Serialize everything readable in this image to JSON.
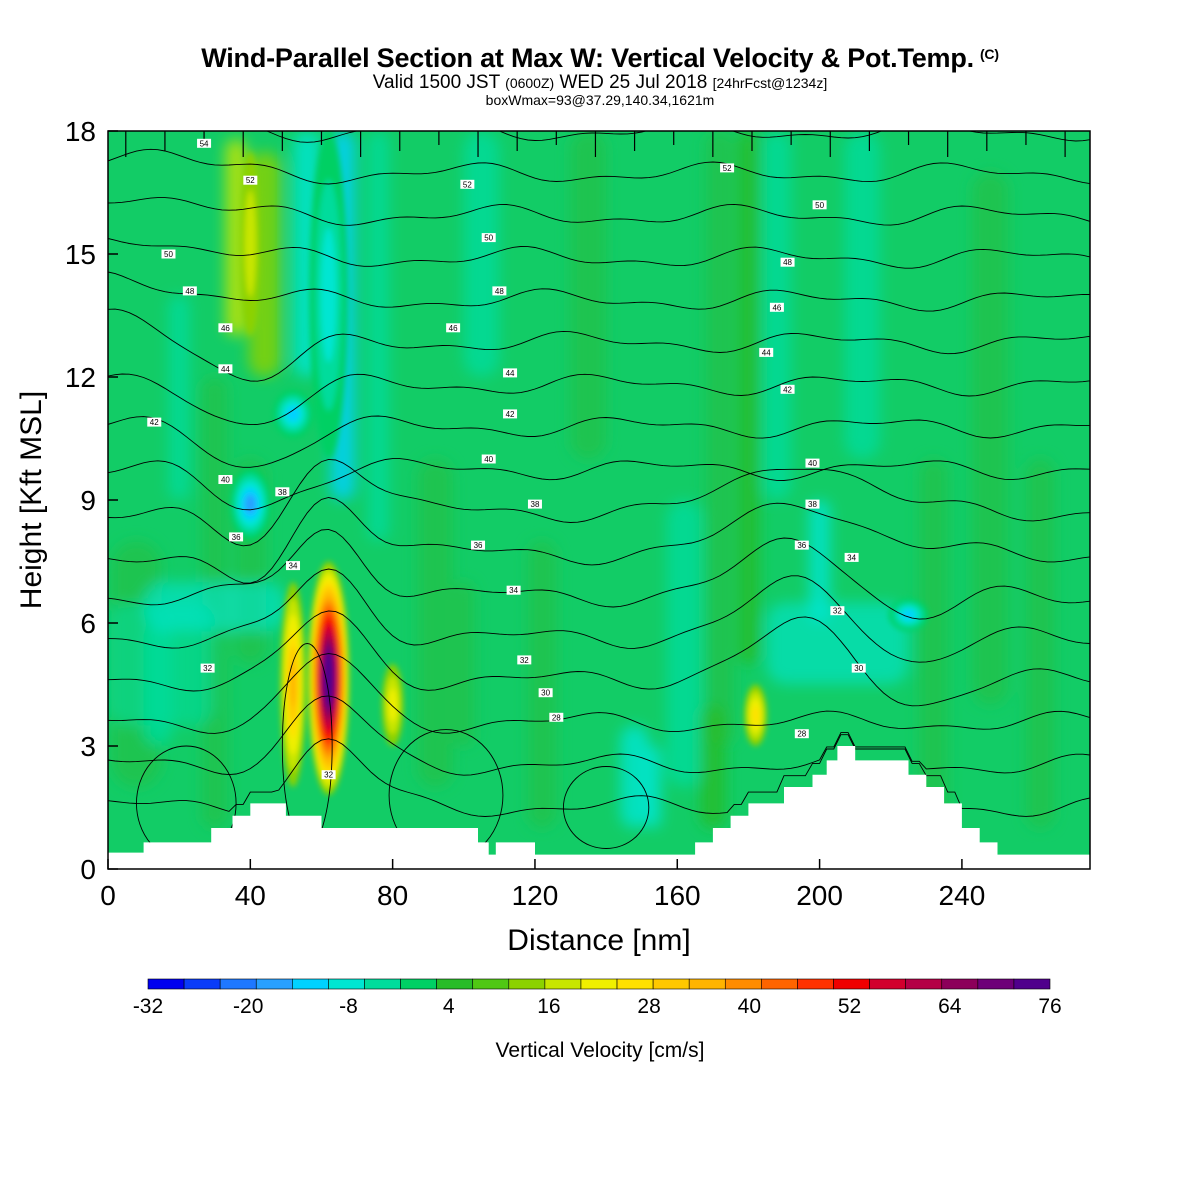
{
  "header": {
    "title": "Wind-Parallel Section at Max W: Vertical Velocity & Pot.Temp.",
    "copyright": "(C)",
    "valid_main": "Valid 1500 JST",
    "valid_utc": "(0600Z)",
    "valid_date": "WED 25 Jul 2018",
    "forecast": "[24hrFcst@1234z]",
    "boxwmax": "boxWmax=93@37.29,140.34,1621m"
  },
  "chart_data": {
    "type": "heatmap",
    "xlabel": "Distance [nm]",
    "ylabel": "Height [Kft MSL]",
    "xlim": [
      0,
      276
    ],
    "ylim": [
      0,
      18
    ],
    "x_ticks": [
      "0",
      "40",
      "80",
      "120",
      "160",
      "200",
      "240"
    ],
    "y_ticks": [
      "0",
      "3",
      "6",
      "9",
      "12",
      "15",
      "18"
    ],
    "colorbar": {
      "label": "Vertical Velocity [cm/s]",
      "ticks": [
        "-32",
        "-20",
        "-8",
        "4",
        "16",
        "28",
        "40",
        "52",
        "64",
        "76"
      ],
      "levels_start": -32,
      "level_step": 4,
      "colors": [
        "#0000f0",
        "#0a3cf8",
        "#1e78ff",
        "#28a0ff",
        "#00d2ff",
        "#00e6d2",
        "#00dc9c",
        "#00d064",
        "#28bc28",
        "#50c814",
        "#8cd200",
        "#c8e600",
        "#f0f000",
        "#ffe000",
        "#ffc800",
        "#ffb400",
        "#ff8c00",
        "#ff6400",
        "#ff3200",
        "#f00000",
        "#d2002d",
        "#b40046",
        "#8c005a",
        "#6e0078",
        "#50008c"
      ]
    },
    "vertical_velocity_features": [
      {
        "kind": "updraft",
        "x": 62,
        "z_range": [
          1.8,
          7.5
        ],
        "peak": 76
      },
      {
        "kind": "updraft",
        "x": 52,
        "z_range": [
          2.0,
          7.0
        ],
        "peak": 28
      },
      {
        "kind": "updraft",
        "x": 80,
        "z_range": [
          3.0,
          5.0
        ],
        "peak": 16
      },
      {
        "kind": "updraft",
        "x": 40,
        "z_range": [
          13.0,
          17.5
        ],
        "peak": 12
      },
      {
        "kind": "updraft",
        "x": 182,
        "z_range": [
          3.0,
          4.5
        ],
        "peak": 20
      },
      {
        "kind": "downdraft",
        "x": 62,
        "z_range": [
          10.0,
          18.0
        ],
        "peak": -12
      },
      {
        "kind": "downdraft",
        "x": 40,
        "z_range": [
          8.0,
          9.8
        ],
        "peak": -20
      },
      {
        "kind": "downdraft",
        "x": 52,
        "z_range": [
          10.5,
          11.7
        ],
        "peak": -18
      },
      {
        "kind": "downdraft",
        "x": 225,
        "z_range": [
          5.8,
          6.6
        ],
        "peak": -16
      }
    ],
    "isentrope_labels": [
      {
        "text": "54",
        "x": 27,
        "z": 17.7
      },
      {
        "text": "52",
        "x": 40,
        "z": 16.8
      },
      {
        "text": "50",
        "x": 17,
        "z": 15.0
      },
      {
        "text": "48",
        "x": 23,
        "z": 14.1
      },
      {
        "text": "46",
        "x": 33,
        "z": 13.2
      },
      {
        "text": "44",
        "x": 33,
        "z": 12.2
      },
      {
        "text": "42",
        "x": 13,
        "z": 10.9
      },
      {
        "text": "40",
        "x": 33,
        "z": 9.5
      },
      {
        "text": "38",
        "x": 49,
        "z": 9.2
      },
      {
        "text": "36",
        "x": 36,
        "z": 8.1
      },
      {
        "text": "34",
        "x": 52,
        "z": 7.4
      },
      {
        "text": "32",
        "x": 28,
        "z": 4.9
      },
      {
        "text": "32",
        "x": 62,
        "z": 2.3
      },
      {
        "text": "52",
        "x": 101,
        "z": 16.7
      },
      {
        "text": "50",
        "x": 107,
        "z": 15.4
      },
      {
        "text": "48",
        "x": 110,
        "z": 14.1
      },
      {
        "text": "46",
        "x": 97,
        "z": 13.2
      },
      {
        "text": "44",
        "x": 113,
        "z": 12.1
      },
      {
        "text": "42",
        "x": 113,
        "z": 11.1
      },
      {
        "text": "40",
        "x": 107,
        "z": 10.0
      },
      {
        "text": "38",
        "x": 120,
        "z": 8.9
      },
      {
        "text": "36",
        "x": 104,
        "z": 7.9
      },
      {
        "text": "34",
        "x": 114,
        "z": 6.8
      },
      {
        "text": "32",
        "x": 117,
        "z": 5.1
      },
      {
        "text": "30",
        "x": 123,
        "z": 4.3
      },
      {
        "text": "28",
        "x": 126,
        "z": 3.7
      },
      {
        "text": "52",
        "x": 174,
        "z": 17.1
      },
      {
        "text": "50",
        "x": 200,
        "z": 16.2
      },
      {
        "text": "48",
        "x": 191,
        "z": 14.8
      },
      {
        "text": "46",
        "x": 188,
        "z": 13.7
      },
      {
        "text": "44",
        "x": 185,
        "z": 12.6
      },
      {
        "text": "42",
        "x": 191,
        "z": 11.7
      },
      {
        "text": "40",
        "x": 198,
        "z": 9.9
      },
      {
        "text": "38",
        "x": 198,
        "z": 8.9
      },
      {
        "text": "36",
        "x": 195,
        "z": 7.9
      },
      {
        "text": "34",
        "x": 209,
        "z": 7.6
      },
      {
        "text": "32",
        "x": 205,
        "z": 6.3
      },
      {
        "text": "30",
        "x": 211,
        "z": 4.9
      },
      {
        "text": "28",
        "x": 195,
        "z": 3.3
      }
    ]
  }
}
